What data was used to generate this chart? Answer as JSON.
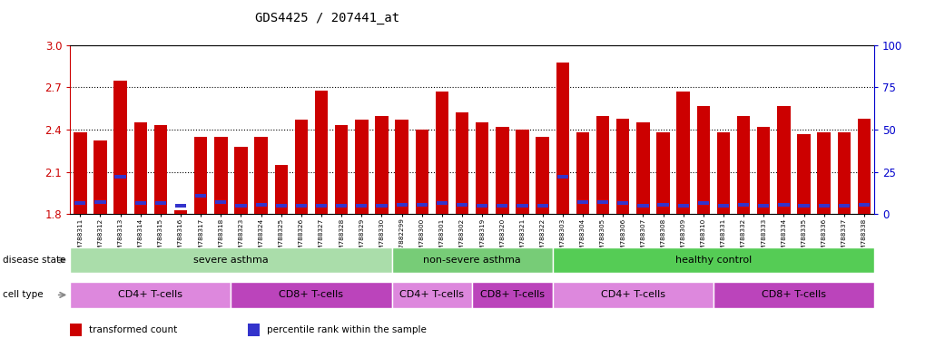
{
  "title": "GDS4425 / 207441_at",
  "left_yaxis": {
    "color": "#cc0000",
    "min": 1.8,
    "max": 3.0,
    "ticks": [
      1.8,
      2.1,
      2.4,
      2.7,
      3.0
    ]
  },
  "right_yaxis": {
    "color": "#0000cc",
    "min": 0,
    "max": 100,
    "ticks": [
      0,
      25,
      50,
      75,
      100
    ]
  },
  "samples": [
    "GSM788311",
    "GSM788312",
    "GSM788313",
    "GSM788314",
    "GSM788315",
    "GSM788316",
    "GSM788317",
    "GSM788318",
    "GSM788323",
    "GSM788324",
    "GSM788325",
    "GSM788326",
    "GSM788327",
    "GSM788328",
    "GSM788329",
    "GSM788330",
    "GSM7882299",
    "GSM788300",
    "GSM788301",
    "GSM788302",
    "GSM788319",
    "GSM788320",
    "GSM788321",
    "GSM788322",
    "GSM788303",
    "GSM788304",
    "GSM788305",
    "GSM788306",
    "GSM788307",
    "GSM788308",
    "GSM788309",
    "GSM788310",
    "GSM788331",
    "GSM788332",
    "GSM788333",
    "GSM788334",
    "GSM788335",
    "GSM788336",
    "GSM788337",
    "GSM788338"
  ],
  "bar_heights": [
    2.38,
    2.32,
    2.75,
    2.45,
    2.43,
    1.83,
    2.35,
    2.35,
    2.28,
    2.35,
    2.15,
    2.47,
    2.68,
    2.43,
    2.47,
    2.5,
    2.47,
    2.4,
    2.67,
    2.52,
    2.45,
    2.42,
    2.4,
    2.35,
    2.88,
    2.38,
    2.5,
    2.48,
    2.45,
    2.38,
    2.67,
    2.57,
    2.38,
    2.5,
    2.42,
    2.57,
    2.37,
    2.38,
    2.38,
    2.48
  ],
  "blue_positions": [
    1.865,
    1.875,
    2.05,
    1.865,
    1.865,
    1.845,
    1.92,
    1.87,
    1.845,
    1.855,
    1.845,
    1.845,
    1.845,
    1.845,
    1.845,
    1.845,
    1.855,
    1.855,
    1.865,
    1.855,
    1.845,
    1.845,
    1.845,
    1.845,
    2.05,
    1.875,
    1.875,
    1.865,
    1.845,
    1.855,
    1.845,
    1.865,
    1.845,
    1.855,
    1.845,
    1.855,
    1.845,
    1.845,
    1.845,
    1.855
  ],
  "bar_color": "#cc0000",
  "blue_color": "#3333cc",
  "base": 1.8,
  "ymin": 1.8,
  "ymax": 3.0,
  "grid_lines": [
    2.1,
    2.4,
    2.7
  ],
  "disease_groups": [
    {
      "label": "severe asthma",
      "start": 0,
      "end": 16,
      "color": "#aaddaa"
    },
    {
      "label": "non-severe asthma",
      "start": 16,
      "end": 24,
      "color": "#77cc77"
    },
    {
      "label": "healthy control",
      "start": 24,
      "end": 40,
      "color": "#55cc55"
    }
  ],
  "cell_groups": [
    {
      "label": "CD4+ T-cells",
      "start": 0,
      "end": 8,
      "color": "#dd88dd"
    },
    {
      "label": "CD8+ T-cells",
      "start": 8,
      "end": 16,
      "color": "#bb44bb"
    },
    {
      "label": "CD4+ T-cells",
      "start": 16,
      "end": 20,
      "color": "#dd88dd"
    },
    {
      "label": "CD8+ T-cells",
      "start": 20,
      "end": 24,
      "color": "#bb44bb"
    },
    {
      "label": "CD4+ T-cells",
      "start": 24,
      "end": 32,
      "color": "#dd88dd"
    },
    {
      "label": "CD8+ T-cells",
      "start": 32,
      "end": 40,
      "color": "#bb44bb"
    }
  ],
  "legend": [
    {
      "label": "transformed count",
      "color": "#cc0000"
    },
    {
      "label": "percentile rank within the sample",
      "color": "#3333cc"
    }
  ],
  "bg_color": "#f0f0f0"
}
